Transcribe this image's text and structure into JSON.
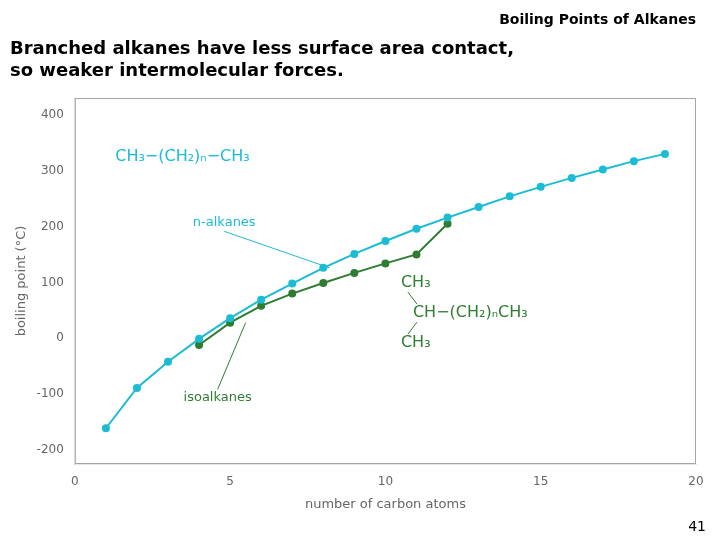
{
  "chart_data": {
    "type": "line",
    "title": "Boiling Points of Alkanes",
    "subtitle": [
      "Branched alkanes have less surface area contact,",
      "so weaker intermolecular forces."
    ],
    "x_label": "number of carbon atoms",
    "y_label": "boiling point (°C)",
    "xlim": [
      0,
      20
    ],
    "xticks": [
      0,
      5,
      10,
      15,
      20
    ],
    "ylim": [
      -225,
      430
    ],
    "yticks": [
      -200,
      -100,
      0,
      100,
      200,
      300,
      400
    ],
    "grid": false,
    "series": [
      {
        "color": "#1BBCD4",
        "marker": "circle",
        "line_style": "solid",
        "x": [
          1,
          2,
          3,
          4,
          5,
          6,
          7,
          8,
          9,
          10,
          11,
          12,
          13,
          14,
          15,
          16,
          17,
          18,
          19
        ],
        "values": [
          -161,
          -89,
          -42,
          -1,
          36,
          69,
          98,
          126,
          151,
          174,
          196,
          216,
          235,
          254,
          271,
          287,
          302,
          317,
          330
        ]
      },
      {
        "color": "#2E7D32",
        "marker": "circle",
        "line_style": "solid",
        "x": [
          4,
          5,
          6,
          7,
          8,
          9,
          10,
          11,
          12
        ],
        "values": [
          -12,
          28,
          58,
          80,
          99,
          117,
          134,
          150,
          205
        ]
      }
    ],
    "annotations": [
      {
        "text": "CH₃−(CH₂)ₙ−CH₃",
        "x": 1.3,
        "y": 310,
        "color": "#1BBCD4"
      },
      {
        "text": "n-alkanes",
        "x": 3.8,
        "y": 195,
        "color": "#1BBCD4",
        "arrow_to": [
          8.2,
          126
        ]
      },
      {
        "text": "isoalkanes",
        "x": 3.5,
        "y": -95,
        "color": "#2E7D32",
        "arrow_to": [
          5.5,
          28
        ]
      },
      {
        "text": [
          "CH₃",
          "CH−(CH₂)ₙCH₃",
          "CH₃"
        ],
        "x": 10.5,
        "y": 45,
        "color": "#2E7D32"
      }
    ],
    "page_number": "41"
  }
}
